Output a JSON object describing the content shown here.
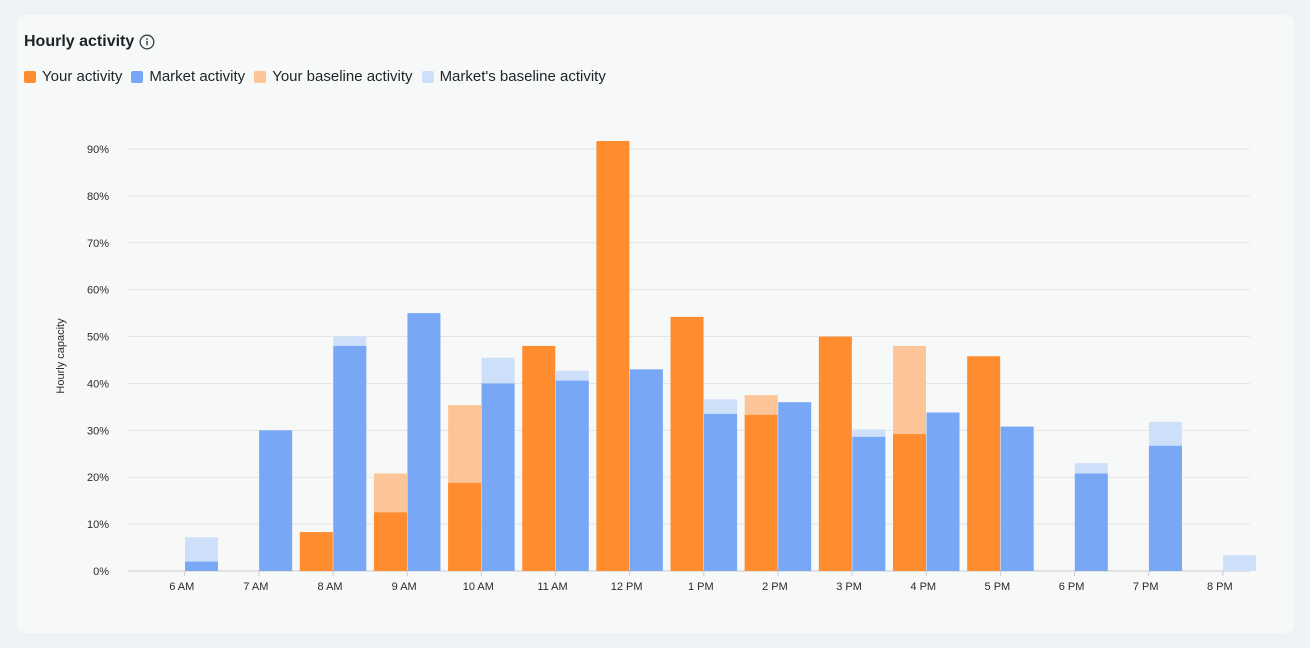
{
  "header": {
    "title": "Hourly activity",
    "info_icon": "info-icon"
  },
  "legend": [
    {
      "label": "Your activity",
      "color": "#ff8c2e"
    },
    {
      "label": "Market activity",
      "color": "#78a8f5"
    },
    {
      "label": "Your baseline activity",
      "color": "#fdc597"
    },
    {
      "label": "Market's baseline activity",
      "color": "#cddff9"
    }
  ],
  "chart_data": {
    "type": "bar",
    "categories": [
      "6 AM",
      "7 AM",
      "8 AM",
      "9 AM",
      "10 AM",
      "11 AM",
      "12 PM",
      "1 PM",
      "2 PM",
      "3 PM",
      "4 PM",
      "5 PM",
      "6 PM",
      "7 PM",
      "8 PM"
    ],
    "series": [
      {
        "name": "Your activity",
        "color": "#ff8c2e",
        "values": [
          0,
          0,
          8.3,
          12.5,
          18.8,
          48,
          91.7,
          54.2,
          33.3,
          50,
          29.2,
          45.8,
          0,
          0,
          0
        ]
      },
      {
        "name": "Your baseline activity",
        "color": "#fdc597",
        "values": [
          0,
          0,
          0,
          20.8,
          35.4,
          0,
          0,
          0,
          37.5,
          0,
          48,
          0,
          0,
          0,
          0
        ]
      },
      {
        "name": "Market activity",
        "color": "#78a8f5",
        "values": [
          2,
          30,
          48,
          55,
          40,
          40.6,
          43,
          33.5,
          36,
          28.6,
          33.8,
          30.8,
          20.8,
          26.7,
          0
        ]
      },
      {
        "name": "Market's baseline activity",
        "color": "#cddff9",
        "values": [
          7.2,
          0,
          50,
          0,
          45.5,
          42.7,
          0,
          36.6,
          0,
          30.2,
          0,
          0,
          23,
          31.8,
          3.4
        ]
      }
    ],
    "ylabel": "Hourly capacity",
    "xlabel": "",
    "yticks": [
      "0%",
      "10%",
      "20%",
      "30%",
      "40%",
      "50%",
      "60%",
      "70%",
      "80%",
      "90%"
    ],
    "ylim": [
      0,
      90
    ],
    "grid": true
  }
}
